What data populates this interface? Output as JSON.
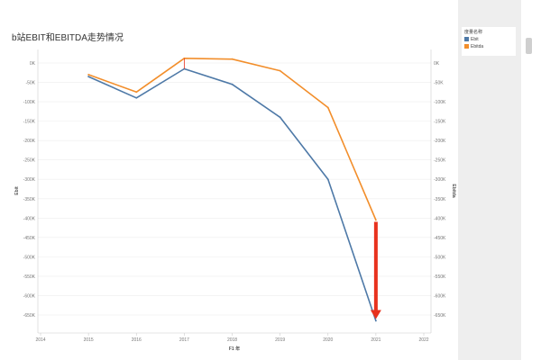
{
  "chart_data": {
    "type": "line",
    "title": "b站EBIT和EBITDA走势情况",
    "xlabel": "F1 年",
    "ylabel_left": "Ebit",
    "ylabel_right": "Ebitda",
    "x_ticks": [
      2014,
      2015,
      2016,
      2017,
      2018,
      2019,
      2020,
      2021,
      2022
    ],
    "x_range": [
      2014,
      2022
    ],
    "y_range": [
      -650000,
      0
    ],
    "y_ticks": [
      0,
      -50000,
      -100000,
      -150000,
      -200000,
      -250000,
      -300000,
      -350000,
      -400000,
      -450000,
      -500000,
      -550000,
      -600000,
      -650000
    ],
    "y_tick_labels": [
      "0K",
      "-50K",
      "-100K",
      "-150K",
      "-200K",
      "-250K",
      "-300K",
      "-350K",
      "-400K",
      "-450K",
      "-500K",
      "-550K",
      "-600K",
      "-650K"
    ],
    "grid": true,
    "legend_position": "right",
    "series": [
      {
        "name": "Ebit",
        "color": "#4e79a7",
        "x": [
          2015,
          2016,
          2017,
          2018,
          2019,
          2020,
          2021
        ],
        "values": [
          -35000,
          -90000,
          -15000,
          -55000,
          -140000,
          -300000,
          -665000
        ]
      },
      {
        "name": "Ebitda",
        "color": "#f28e2b",
        "x": [
          2015,
          2016,
          2017,
          2018,
          2019,
          2020,
          2021
        ],
        "values": [
          -30000,
          -75000,
          12000,
          10000,
          -20000,
          -115000,
          -405000
        ]
      }
    ]
  },
  "legend": {
    "title": "度量名称",
    "items": [
      {
        "label": "Ebit",
        "color": "#4e79a7"
      },
      {
        "label": "Ebitda",
        "color": "#f28e2b"
      }
    ]
  },
  "annotation_arrow_color": "#e8321e"
}
